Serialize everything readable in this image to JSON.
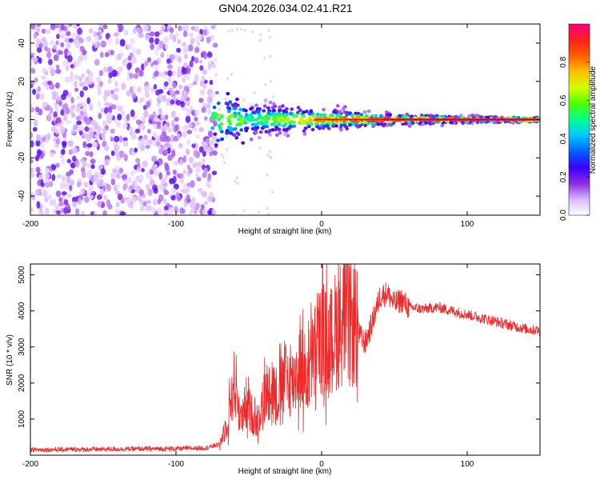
{
  "figure_title": "GN04.2026.034.02.41.R21",
  "chart_data": [
    {
      "type": "heatmap",
      "name": "spectrogram",
      "xlabel": "Height of straight line (km)",
      "ylabel": "Frequency (Hz)",
      "xlim": [
        -200,
        150
      ],
      "ylim": [
        -50,
        50
      ],
      "xticks": [
        -200,
        -100,
        0,
        100
      ],
      "xtick_labels": [
        "-200",
        "-100",
        "0",
        "100"
      ],
      "yticks": [
        -40,
        -20,
        0,
        20,
        40
      ],
      "ytick_labels": [
        "-40",
        "-20",
        "0",
        "20",
        "40"
      ],
      "noise_region_x": [
        -200,
        -73
      ],
      "carrier_frequency": 0,
      "carrier_line_from_x": -5,
      "carrier_band_x": [
        -75,
        150
      ],
      "colorbar": {
        "label": "Normalized spectral amplitude",
        "range": [
          0,
          1
        ],
        "ticks": [
          0.0,
          0.2,
          0.4,
          0.6,
          0.8
        ],
        "tick_labels": [
          "0.0",
          "0.2",
          "0.4",
          "0.6",
          "0.8"
        ],
        "colors": [
          "#ffffff",
          "#d9b8ff",
          "#8a2be2",
          "#3a00ff",
          "#0060ff",
          "#00c8ff",
          "#00ff90",
          "#50ff00",
          "#d0ff00",
          "#ffc000",
          "#ff6000",
          "#ff2020",
          "#ff0080"
        ]
      }
    },
    {
      "type": "line",
      "name": "snr",
      "xlabel": "Height of straight line (km)",
      "ylabel": "SNR (10 * v/v)",
      "xlim": [
        -200,
        150
      ],
      "ylim": [
        0,
        5300
      ],
      "xticks": [
        -200,
        -100,
        0,
        100
      ],
      "xtick_labels": [
        "-200",
        "-100",
        "0",
        "100"
      ],
      "yticks": [
        1000,
        2000,
        3000,
        4000,
        5000
      ],
      "ytick_labels": [
        "1000",
        "2000",
        "3000",
        "4000",
        "5000"
      ],
      "line_color": "#ee2a2a",
      "series": [
        {
          "name": "SNR",
          "x": [
            -200,
            -180,
            -160,
            -140,
            -120,
            -100,
            -80,
            -70,
            -65,
            -60,
            -58,
            -55,
            -50,
            -45,
            -40,
            -35,
            -30,
            -25,
            -20,
            -15,
            -10,
            -5,
            0,
            5,
            10,
            15,
            20,
            25,
            30,
            35,
            40,
            45,
            50,
            55,
            60,
            70,
            80,
            90,
            100,
            110,
            120,
            130,
            140,
            150
          ],
          "values": [
            150,
            160,
            160,
            170,
            175,
            180,
            200,
            300,
            900,
            2000,
            1500,
            1000,
            1300,
            900,
            1500,
            2000,
            1600,
            2200,
            2000,
            2500,
            2200,
            2800,
            3300,
            3000,
            3500,
            3800,
            3700,
            3400,
            3100,
            3700,
            4400,
            4500,
            4200,
            4300,
            4100,
            4050,
            4100,
            4000,
            3900,
            3800,
            3700,
            3600,
            3500,
            3450
          ]
        }
      ]
    }
  ]
}
